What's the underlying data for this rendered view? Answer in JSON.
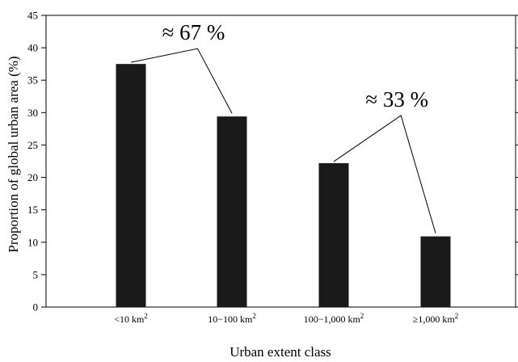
{
  "chart_data": {
    "type": "bar",
    "categories": [
      "<10 km2",
      "10–100 km2",
      "100–1,000 km2",
      "≥1,000 km2"
    ],
    "category_labels": [
      {
        "base": "<10 km",
        "sup": "2"
      },
      {
        "base": "10−100 km",
        "sup": "2"
      },
      {
        "base": "100−1,000 km",
        "sup": "2"
      },
      {
        "base": "≥1,000 km",
        "sup": "2"
      }
    ],
    "values": [
      37.5,
      29.4,
      22.2,
      10.9
    ],
    "xlabel": "Urban extent class",
    "ylabel": "Proportion of global urban area (%)",
    "ylim": [
      0,
      45
    ],
    "yticks": [
      0,
      5,
      10,
      15,
      20,
      25,
      30,
      35,
      40,
      45
    ],
    "grid": false,
    "bar_color": "#1a1a1a",
    "annotations": [
      {
        "text": "≈ 67 %",
        "brackets_categories": [
          0,
          1
        ]
      },
      {
        "text": "≈ 33 %",
        "brackets_categories": [
          2,
          3
        ]
      }
    ]
  }
}
